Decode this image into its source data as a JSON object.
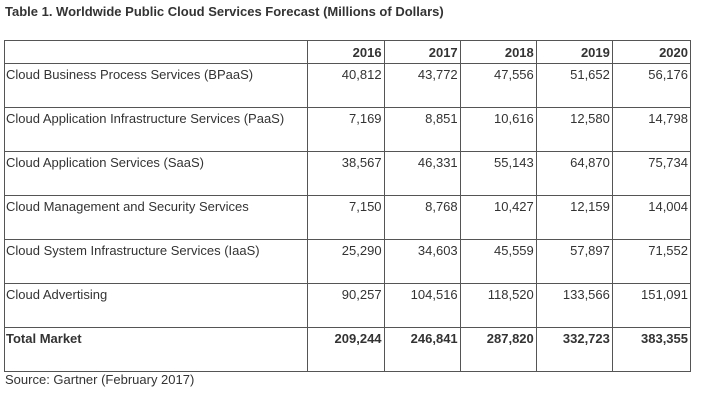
{
  "title": "Table 1. Worldwide Public Cloud Services Forecast (Millions of Dollars)",
  "table": {
    "header": {
      "label": "",
      "years": [
        "2016",
        "2017",
        "2018",
        "2019",
        "2020"
      ]
    },
    "rows": [
      {
        "label": "Cloud Business Process Services (BPaaS)",
        "values": [
          "40,812",
          "43,772",
          "47,556",
          "51,652",
          "56,176"
        ]
      },
      {
        "label": "Cloud Application Infrastructure Services (PaaS)",
        "values": [
          "7,169",
          "8,851",
          "10,616",
          "12,580",
          "14,798"
        ]
      },
      {
        "label": "Cloud Application Services (SaaS)",
        "values": [
          "38,567",
          "46,331",
          "55,143",
          "64,870",
          "75,734"
        ]
      },
      {
        "label": "Cloud Management and Security Services",
        "values": [
          "7,150",
          "8,768",
          "10,427",
          "12,159",
          "14,004"
        ]
      },
      {
        "label": "Cloud System Infrastructure Services (IaaS)",
        "values": [
          "25,290",
          "34,603",
          "45,559",
          "57,897",
          "71,552"
        ]
      },
      {
        "label": "Cloud Advertising",
        "values": [
          "90,257",
          "104,516",
          "118,520",
          "133,566",
          "151,091"
        ]
      }
    ],
    "total": {
      "label": "Total Market",
      "values": [
        "209,244",
        "246,841",
        "287,820",
        "332,723",
        "383,355"
      ]
    }
  },
  "source": "Source: Gartner (February 2017)",
  "colors": {
    "text": "#333333",
    "border": "#555555",
    "background": "#ffffff"
  }
}
